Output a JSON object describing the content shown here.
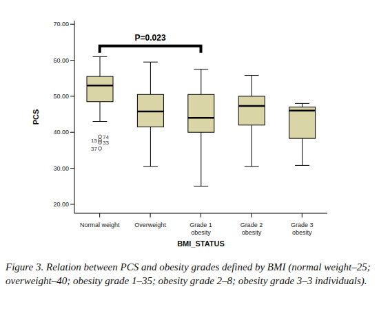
{
  "chart_data": {
    "type": "boxplot",
    "x_label": "BMI_STATUS",
    "y_label": "PCS",
    "categories": [
      "Normal weight",
      "Overweight",
      "Grade 1 obesity",
      "Grade 2 obesity",
      "Grade 3 obesity"
    ],
    "boxes": [
      {
        "min": 43,
        "q1": 48.5,
        "median": 53,
        "q3": 55.5,
        "max": 61,
        "outliers": [
          {
            "value": 38.8,
            "label": "74"
          },
          {
            "value": 37.8,
            "label": "15"
          },
          {
            "value": 37.2,
            "label": "33"
          },
          {
            "value": 35.5,
            "label": "37"
          }
        ]
      },
      {
        "min": 30.5,
        "q1": 41.5,
        "median": 45.8,
        "q3": 50.5,
        "max": 59.5,
        "outliers": []
      },
      {
        "min": 25,
        "q1": 40,
        "median": 44,
        "q3": 50.5,
        "max": 57.5,
        "outliers": []
      },
      {
        "min": 30.5,
        "q1": 42,
        "median": 47.3,
        "q3": 50,
        "max": 55.8,
        "outliers": []
      },
      {
        "min": 30.8,
        "q1": 38.3,
        "median": 46,
        "q3": 47,
        "max": 48,
        "outliers": []
      }
    ],
    "color": "#d9d5a7",
    "ylim": [
      17.5,
      71
    ],
    "yticks": [
      {
        "value": 20,
        "label": "20.00"
      },
      {
        "value": 30,
        "label": "30.00"
      },
      {
        "value": 40,
        "label": "40.00"
      },
      {
        "value": 50,
        "label": "50.00"
      },
      {
        "value": 60,
        "label": "60.00"
      },
      {
        "value": 70,
        "label": "70.00"
      }
    ],
    "grid": false,
    "annotations": [
      {
        "text": "P=0.023",
        "from": "Normal weight",
        "to": "Grade 1 obesity",
        "y": 64
      }
    ],
    "caption": "Figure 3. Relation between PCS and obesity grades defined by BMI (normal weight–25; overweight–40; obesity grade 1–35; obesity grade 2–8; obesity grade 3–3 individuals)."
  }
}
